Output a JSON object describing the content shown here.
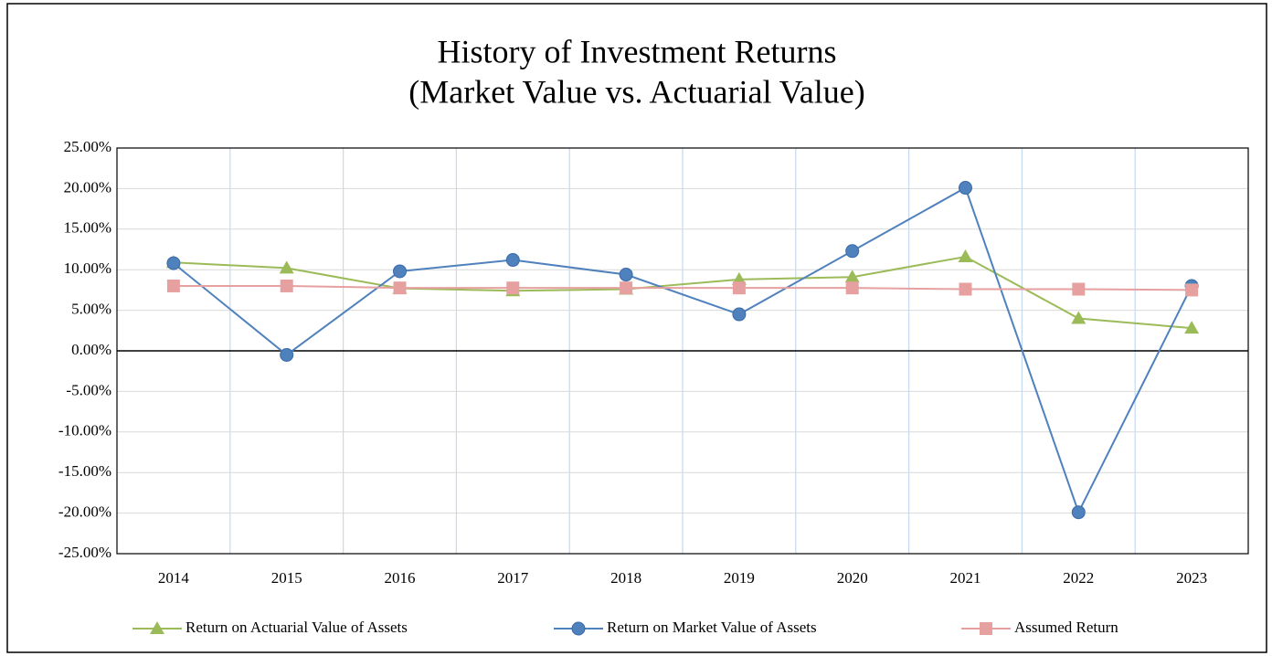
{
  "chart_data": {
    "type": "line",
    "title": [
      "History of Investment Returns",
      "(Market Value vs. Actuarial Value)"
    ],
    "categories": [
      "2014",
      "2015",
      "2016",
      "2017",
      "2018",
      "2019",
      "2020",
      "2021",
      "2022",
      "2023"
    ],
    "series": [
      {
        "name": "Return on Actuarial Value of Assets",
        "color": "#9bbb59",
        "marker": "triangle",
        "values": [
          10.9,
          10.2,
          7.7,
          7.4,
          7.6,
          8.8,
          9.1,
          11.6,
          4.0,
          2.8
        ]
      },
      {
        "name": "Return on Market Value of Assets",
        "color": "#4f81bd",
        "marker": "circle",
        "values": [
          10.8,
          -0.5,
          9.8,
          11.2,
          9.4,
          4.5,
          12.3,
          20.1,
          -19.9,
          8.0
        ]
      },
      {
        "name": "Assumed Return",
        "color": "#e6a0a0",
        "marker": "square",
        "values": [
          8.0,
          8.0,
          7.75,
          7.75,
          7.75,
          7.75,
          7.75,
          7.6,
          7.6,
          7.5
        ]
      }
    ],
    "ylim": [
      -25,
      25
    ],
    "yticks": [
      {
        "value": 25,
        "label": "25.00%"
      },
      {
        "value": 20,
        "label": "20.00%"
      },
      {
        "value": 15,
        "label": "15.00%"
      },
      {
        "value": 10,
        "label": "10.00%"
      },
      {
        "value": 5,
        "label": "5.00%"
      },
      {
        "value": 0,
        "label": "0.00%"
      },
      {
        "value": -5,
        "label": "-5.00%"
      },
      {
        "value": -10,
        "label": "-10.00%"
      },
      {
        "value": -15,
        "label": "-15.00%"
      },
      {
        "value": -20,
        "label": "-20.00%"
      },
      {
        "value": -25,
        "label": "-25.00%"
      }
    ],
    "grid": true,
    "legend": "bottom"
  }
}
